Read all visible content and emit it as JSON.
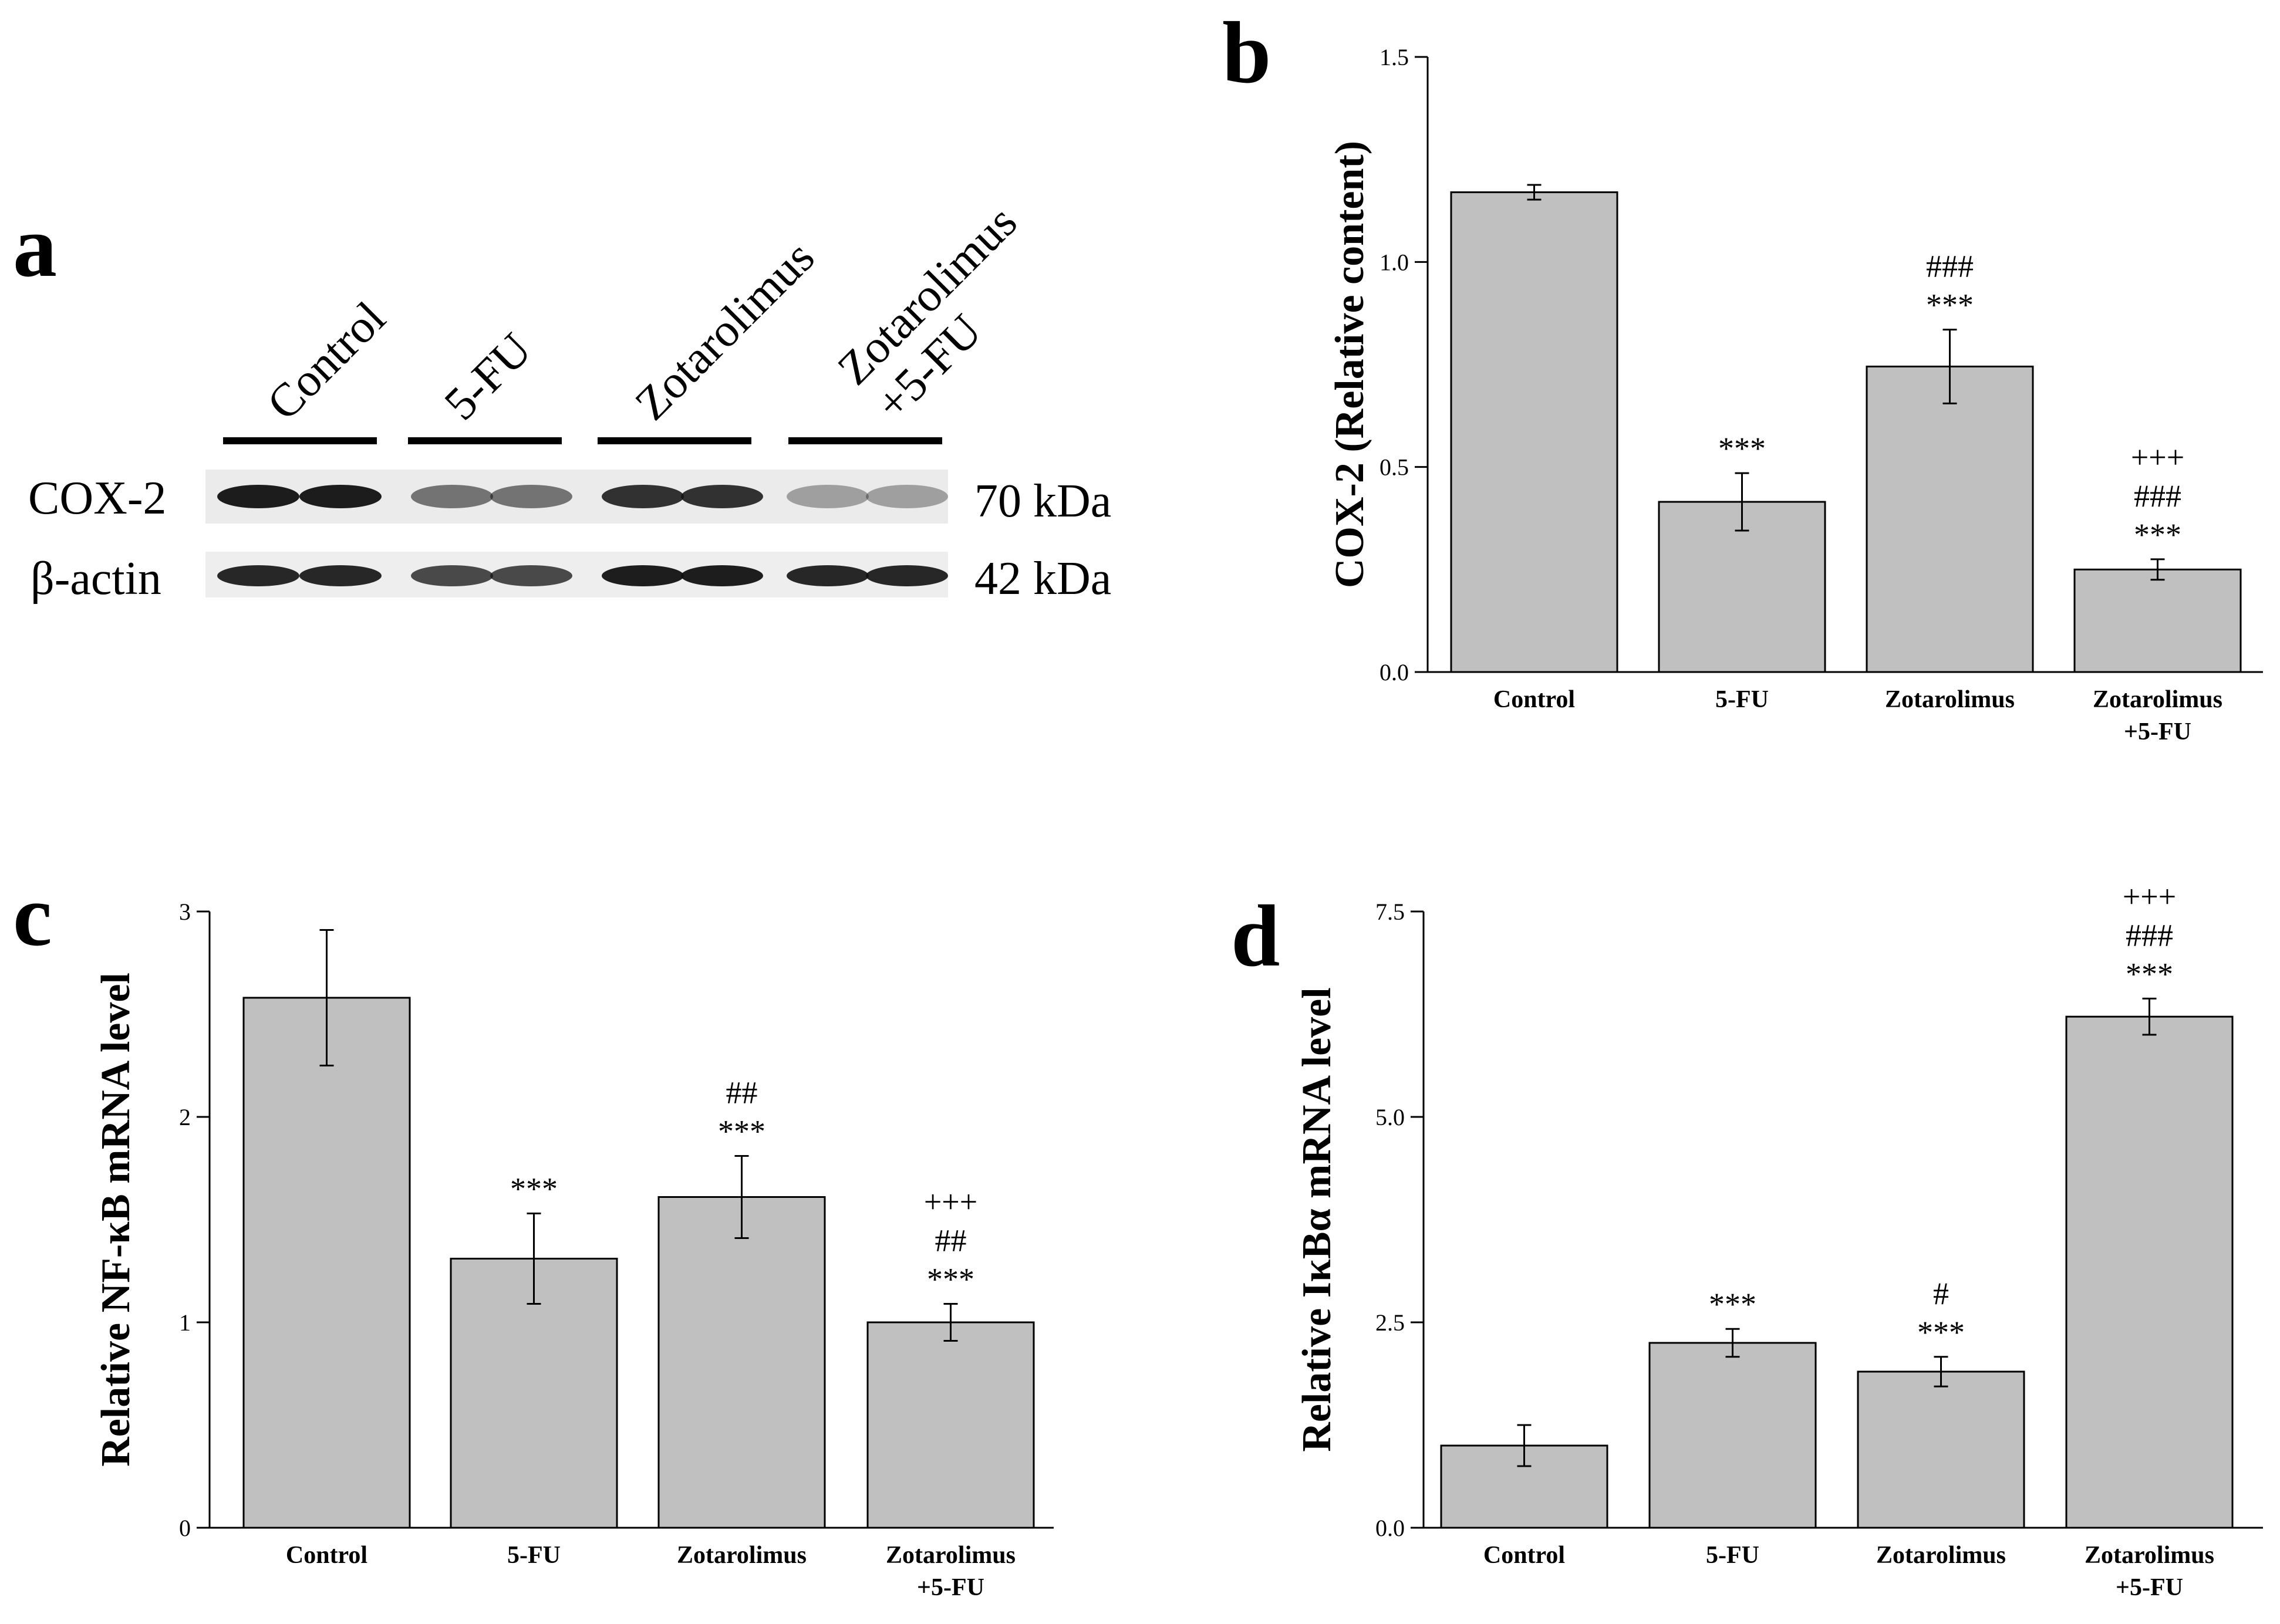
{
  "western_blot": {
    "panel": "a",
    "lanes": [
      "Control",
      "5-FU",
      "Zotarolimus",
      "Zotarolimus",
      "+5-FU"
    ],
    "rows": [
      {
        "protein": "COX-2",
        "size": "70 kDa",
        "intensities": [
          0.95,
          0.95,
          0.55,
          0.55,
          0.85,
          0.85,
          0.35,
          0.35
        ]
      },
      {
        "protein": "β-actin",
        "size": "42 kDa",
        "intensities": [
          0.9,
          0.9,
          0.75,
          0.75,
          0.95,
          0.95,
          0.9,
          0.9
        ]
      }
    ]
  },
  "chart_data": [
    {
      "panel": "b",
      "type": "bar",
      "title": "",
      "xlabel": "",
      "ylabel": "COX-2 (Relative content)",
      "categories": [
        "Control",
        "5-FU",
        "Zotarolimus",
        "Zotarolimus +5-FU"
      ],
      "category_lines": [
        [
          "Control"
        ],
        [
          "5-FU"
        ],
        [
          "Zotarolimus"
        ],
        [
          "Zotarolimus",
          "+5-FU"
        ]
      ],
      "values": [
        1.17,
        0.415,
        0.745,
        0.25
      ],
      "errors": [
        0.018,
        0.07,
        0.09,
        0.025
      ],
      "significance": [
        [],
        [
          "***"
        ],
        [
          "###",
          "***"
        ],
        [
          "+++",
          "###",
          "***"
        ]
      ],
      "ylim": [
        0,
        1.5
      ],
      "yticks": [
        0.0,
        0.5,
        1.0,
        1.5
      ],
      "ytick_labels": [
        "0.0",
        "0.5",
        "1.0",
        "1.5"
      ]
    },
    {
      "panel": "c",
      "type": "bar",
      "title": "",
      "xlabel": "",
      "ylabel": "Relative NF-κB mRNA level",
      "categories": [
        "Control",
        "5-FU",
        "Zotarolimus",
        "Zotarolimus +5-FU"
      ],
      "category_lines": [
        [
          "Control"
        ],
        [
          "5-FU"
        ],
        [
          "Zotarolimus"
        ],
        [
          "Zotarolimus",
          "+5-FU"
        ]
      ],
      "values": [
        2.58,
        1.31,
        1.61,
        1.0
      ],
      "errors": [
        0.33,
        0.22,
        0.2,
        0.09
      ],
      "significance": [
        [],
        [
          "***"
        ],
        [
          "##",
          "***"
        ],
        [
          "+++",
          "##",
          "***"
        ]
      ],
      "ylim": [
        0,
        3
      ],
      "yticks": [
        0,
        1,
        2,
        3
      ],
      "ytick_labels": [
        "0",
        "1",
        "2",
        "3"
      ]
    },
    {
      "panel": "d",
      "type": "bar",
      "title": "",
      "xlabel": "",
      "ylabel": "Relative IκBα mRNA level",
      "categories": [
        "Control",
        "5-FU",
        "Zotarolimus",
        "Zotarolimus +5-FU"
      ],
      "category_lines": [
        [
          "Control"
        ],
        [
          "5-FU"
        ],
        [
          "Zotarolimus"
        ],
        [
          "Zotarolimus",
          "+5-FU"
        ]
      ],
      "values": [
        1.0,
        2.25,
        1.9,
        6.22
      ],
      "errors": [
        0.25,
        0.17,
        0.18,
        0.22
      ],
      "significance": [
        [],
        [
          "***"
        ],
        [
          "#",
          "***"
        ],
        [
          "+++",
          "###",
          "***"
        ]
      ],
      "ylim": [
        0,
        7.5
      ],
      "yticks": [
        0.0,
        2.5,
        5.0,
        7.5
      ],
      "ytick_labels": [
        "0.0",
        "2.5",
        "5.0",
        "7.5"
      ]
    }
  ],
  "colors": {
    "bar_fill": "#c0c0c0",
    "stroke": "#000000"
  }
}
